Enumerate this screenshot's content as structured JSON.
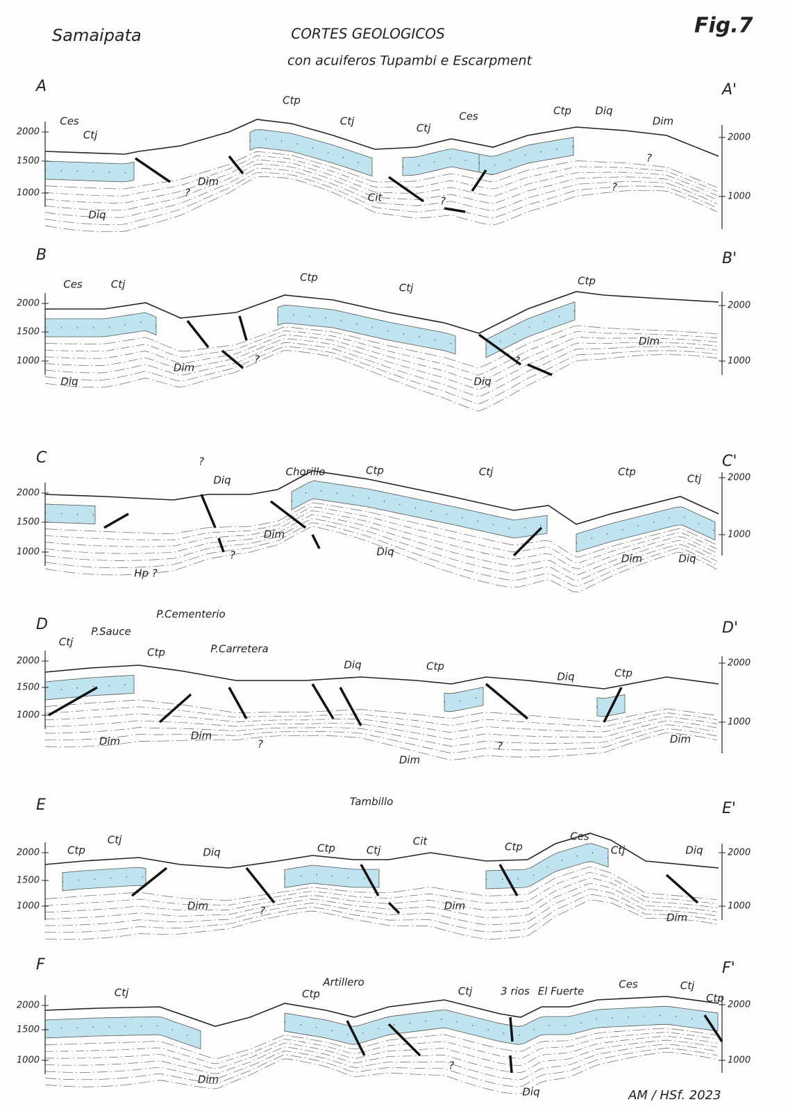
{
  "header": {
    "place": "Samaipata",
    "title": "CORTES GEOLOGICOS",
    "subtitle": "con acuiferos Tupambi e Escarpment",
    "figure": "Fig.7"
  },
  "sections": [
    {
      "start": "A",
      "end": "A'",
      "left_ticks": [
        "2000",
        "1500",
        "1000"
      ],
      "right_ticks": [
        "2000",
        "1000"
      ],
      "labels": [
        "Ces",
        "Ctj",
        "Diq",
        "Dim",
        "Ctp",
        "Ctj",
        "Ctj",
        "Ces",
        "Cit",
        "Ctp",
        "Diq",
        "Dim",
        "?",
        "?",
        "?",
        "?"
      ]
    },
    {
      "start": "B",
      "end": "B'",
      "left_ticks": [
        "2000",
        "1500",
        "1000"
      ],
      "right_ticks": [
        "2000",
        "1000"
      ],
      "labels": [
        "Ces",
        "Ctj",
        "Diq",
        "Dim",
        "Ctp",
        "Ctj",
        "Ctp",
        "Dim",
        "Diq",
        "?",
        "?"
      ]
    },
    {
      "start": "C",
      "end": "C'",
      "left_ticks": [
        "2000",
        "1500",
        "1000"
      ],
      "right_ticks": [
        "2000",
        "1000"
      ],
      "labels": [
        "Hp ?",
        "?",
        "Diq",
        "Chorillo",
        "Ctp",
        "Ctj",
        "Dim",
        "Diq",
        "Ctp",
        "Ctj",
        "Dim",
        "Diq",
        "?"
      ]
    },
    {
      "start": "D",
      "end": "D'",
      "left_ticks": [
        "2000",
        "1500",
        "1000"
      ],
      "right_ticks": [
        "2000",
        "1000"
      ],
      "labels": [
        "Ctj",
        "P.Sauce",
        "P.Cementerio",
        "Ctp",
        "P.Carretera",
        "Dim",
        "Dim",
        "?",
        "Diq",
        "Ctp",
        "Dim",
        "Diq",
        "Ctp",
        "?",
        "Dim"
      ]
    },
    {
      "start": "E",
      "end": "E'",
      "left_ticks": [
        "2000",
        "1500",
        "1000"
      ],
      "right_ticks": [
        "2000",
        "1000"
      ],
      "labels": [
        "Ctp",
        "Ctj",
        "Diq",
        "Dim",
        "?",
        "Tambillo",
        "Ctp",
        "Ctj",
        "Cit",
        "Dim",
        "Ctp",
        "Ces",
        "Ctj",
        "Diq",
        "Dim"
      ]
    },
    {
      "start": "F",
      "end": "F'",
      "left_ticks": [
        "2000",
        "1500",
        "1000"
      ],
      "right_ticks": [
        "2000",
        "1000"
      ],
      "labels": [
        "Ctj",
        "Dim",
        "Artillero",
        "Ctp",
        "Ctj",
        "?",
        "3 rios",
        "El Fuerte",
        "Ces",
        "Ctj",
        "Ctp",
        "Diq"
      ]
    }
  ],
  "footer": {
    "signature": "AM / HSf. 2023"
  }
}
